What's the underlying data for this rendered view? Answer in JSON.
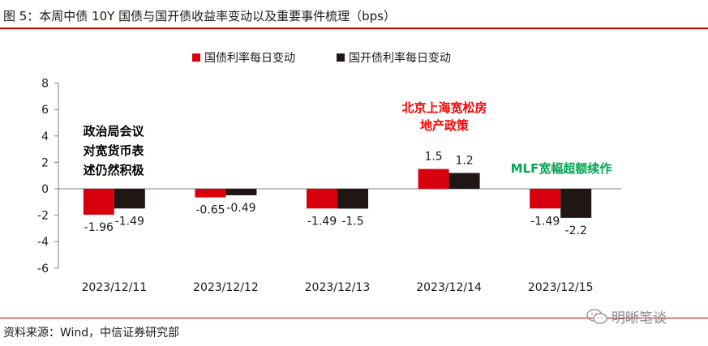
{
  "header": {
    "title": "图 5：本周中债 10Y 国债与国开债收益率变动以及重要事件梳理（bps）"
  },
  "footer": {
    "source": "资料来源：Wind，中信证券研究部",
    "watermark": "明晰笔谈"
  },
  "colors": {
    "accent": "#c00000",
    "series_treasury": "#d9000d",
    "series_cdb": "#201714",
    "annotation_black": "#000000",
    "annotation_red": "#ff0000",
    "annotation_green": "#00a651"
  },
  "chart_data": {
    "type": "bar",
    "categories": [
      "2023/12/11",
      "2023/12/12",
      "2023/12/13",
      "2023/12/14",
      "2023/12/15"
    ],
    "series": [
      {
        "name": "国债利率每日变动",
        "values": [
          -1.96,
          -0.65,
          -1.49,
          1.5,
          -1.49
        ]
      },
      {
        "name": "国开债利率每日变动",
        "values": [
          -1.49,
          -0.49,
          -1.5,
          1.2,
          -2.2
        ]
      }
    ],
    "data_labels": [
      [
        "-1.96",
        "-0.65",
        "-1.49",
        "1.5",
        "-1.49"
      ],
      [
        "-1.49",
        "-0.49",
        "-1.5",
        "1.2",
        "-2.2"
      ]
    ],
    "yticks": [
      "8",
      "6",
      "4",
      "2",
      "0",
      "-2",
      "-4",
      "-6"
    ],
    "ylim": [
      -6,
      8
    ],
    "legend_position": "top",
    "grid": false,
    "annotations": [
      {
        "lines": [
          "政治局会议",
          "对宽货币表",
          "述仍然积极"
        ],
        "color": "#000000"
      },
      {
        "lines": [
          "北京上海宽松房",
          "地产政策"
        ],
        "color": "#ff0000"
      },
      {
        "lines": [
          "MLF宽幅超额续作"
        ],
        "color": "#00a651"
      }
    ]
  }
}
